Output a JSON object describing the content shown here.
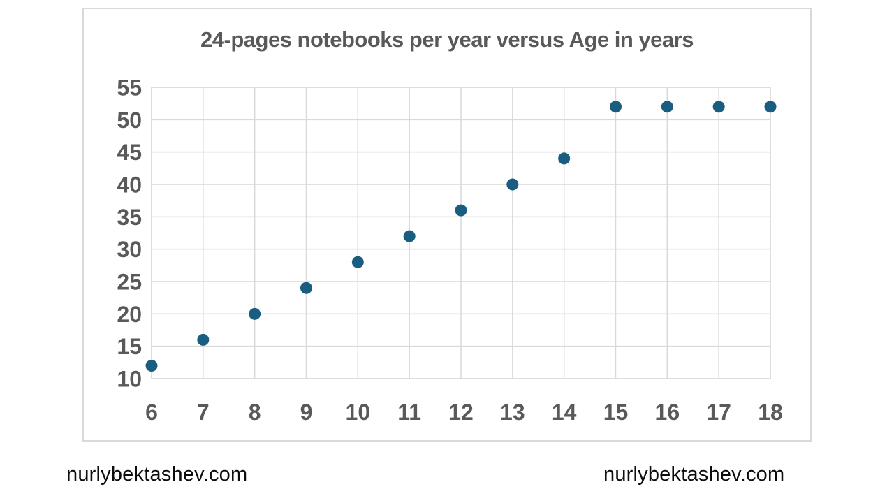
{
  "chart_data": {
    "type": "scatter",
    "title": "24-pages notebooks per year versus Age in years",
    "x": [
      6,
      7,
      8,
      9,
      10,
      11,
      12,
      13,
      14,
      15,
      16,
      17,
      18
    ],
    "y": [
      12,
      16,
      20,
      24,
      28,
      32,
      36,
      40,
      44,
      52,
      52,
      52,
      52
    ],
    "xlim": [
      6,
      18
    ],
    "ylim": [
      10,
      55
    ],
    "x_tick_step": 1,
    "y_tick_step": 5,
    "grid": true,
    "legend_position": "none",
    "marker_color": "#195d80",
    "gridline_color": "#d9d9d9",
    "plot_border_color": "#d9d9d9",
    "axis_text_color": "#595959",
    "title_color": "#595959",
    "frame_border_color": "#d9d9d9"
  },
  "footer": {
    "left_text": "nurlybektashev.com",
    "right_text": "nurlybektashev.com"
  }
}
